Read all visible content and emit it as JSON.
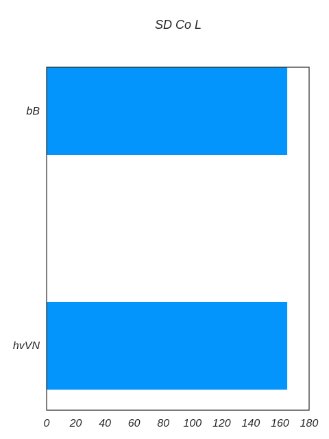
{
  "chart_data": {
    "type": "bar",
    "orientation": "horizontal",
    "title": "SD Co L",
    "xlabel": "",
    "ylabel": "",
    "categories": [
      "bB",
      "hvVN"
    ],
    "values": [
      165,
      165
    ],
    "xlim": [
      0,
      180
    ],
    "xticks": [
      0,
      20,
      40,
      60,
      80,
      100,
      120,
      140,
      160,
      180
    ],
    "grid": false,
    "bar_color": "#0394fc"
  }
}
